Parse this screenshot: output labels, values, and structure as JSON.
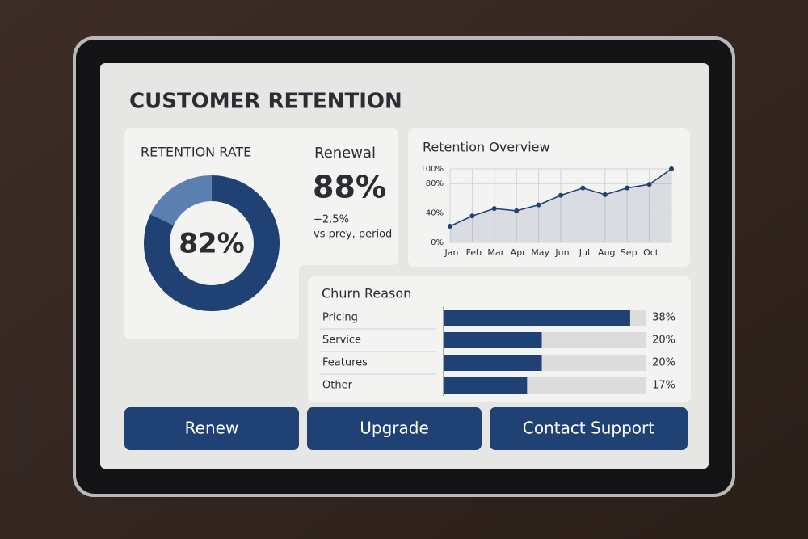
{
  "title": "CUSTOMER RETENTION",
  "retention_rate": {
    "label": "RETENTION RATE",
    "value": 82,
    "value_label": "82%"
  },
  "renewal": {
    "label": "Renewal",
    "value": "88%",
    "change": "+2.5%",
    "comparison": "vs prey, period"
  },
  "overview": {
    "type": "line",
    "title": "Retention Overview",
    "categories": [
      "Jan",
      "Feb",
      "Mar",
      "Apr",
      "May",
      "Jun",
      "Jul",
      "Aug",
      "Sep",
      "Oct",
      null
    ],
    "values": [
      22,
      36,
      46,
      43,
      51,
      64,
      74,
      65,
      74,
      79,
      100
    ],
    "color": "#1f4173",
    "grid": true,
    "ylim": [
      0,
      100
    ],
    "yticks": [
      {
        "value": 100,
        "label": "100%"
      },
      {
        "value": 80,
        "label": "80%"
      },
      {
        "value": 40,
        "label": "40%"
      },
      {
        "value": 0,
        "label": "0%"
      }
    ]
  },
  "churn": {
    "type": "bar",
    "title": "Churn Reason",
    "categories": [
      "Pricing",
      "Service",
      "Features",
      "Other"
    ],
    "values": [
      38,
      20,
      20,
      17
    ],
    "value_labels": [
      "38%",
      "20%",
      "20%",
      "17%"
    ],
    "color": "#1f4173"
  },
  "buttons": [
    "Renew",
    "Upgrade",
    "Contact Support"
  ],
  "image_id": "1576044862"
}
